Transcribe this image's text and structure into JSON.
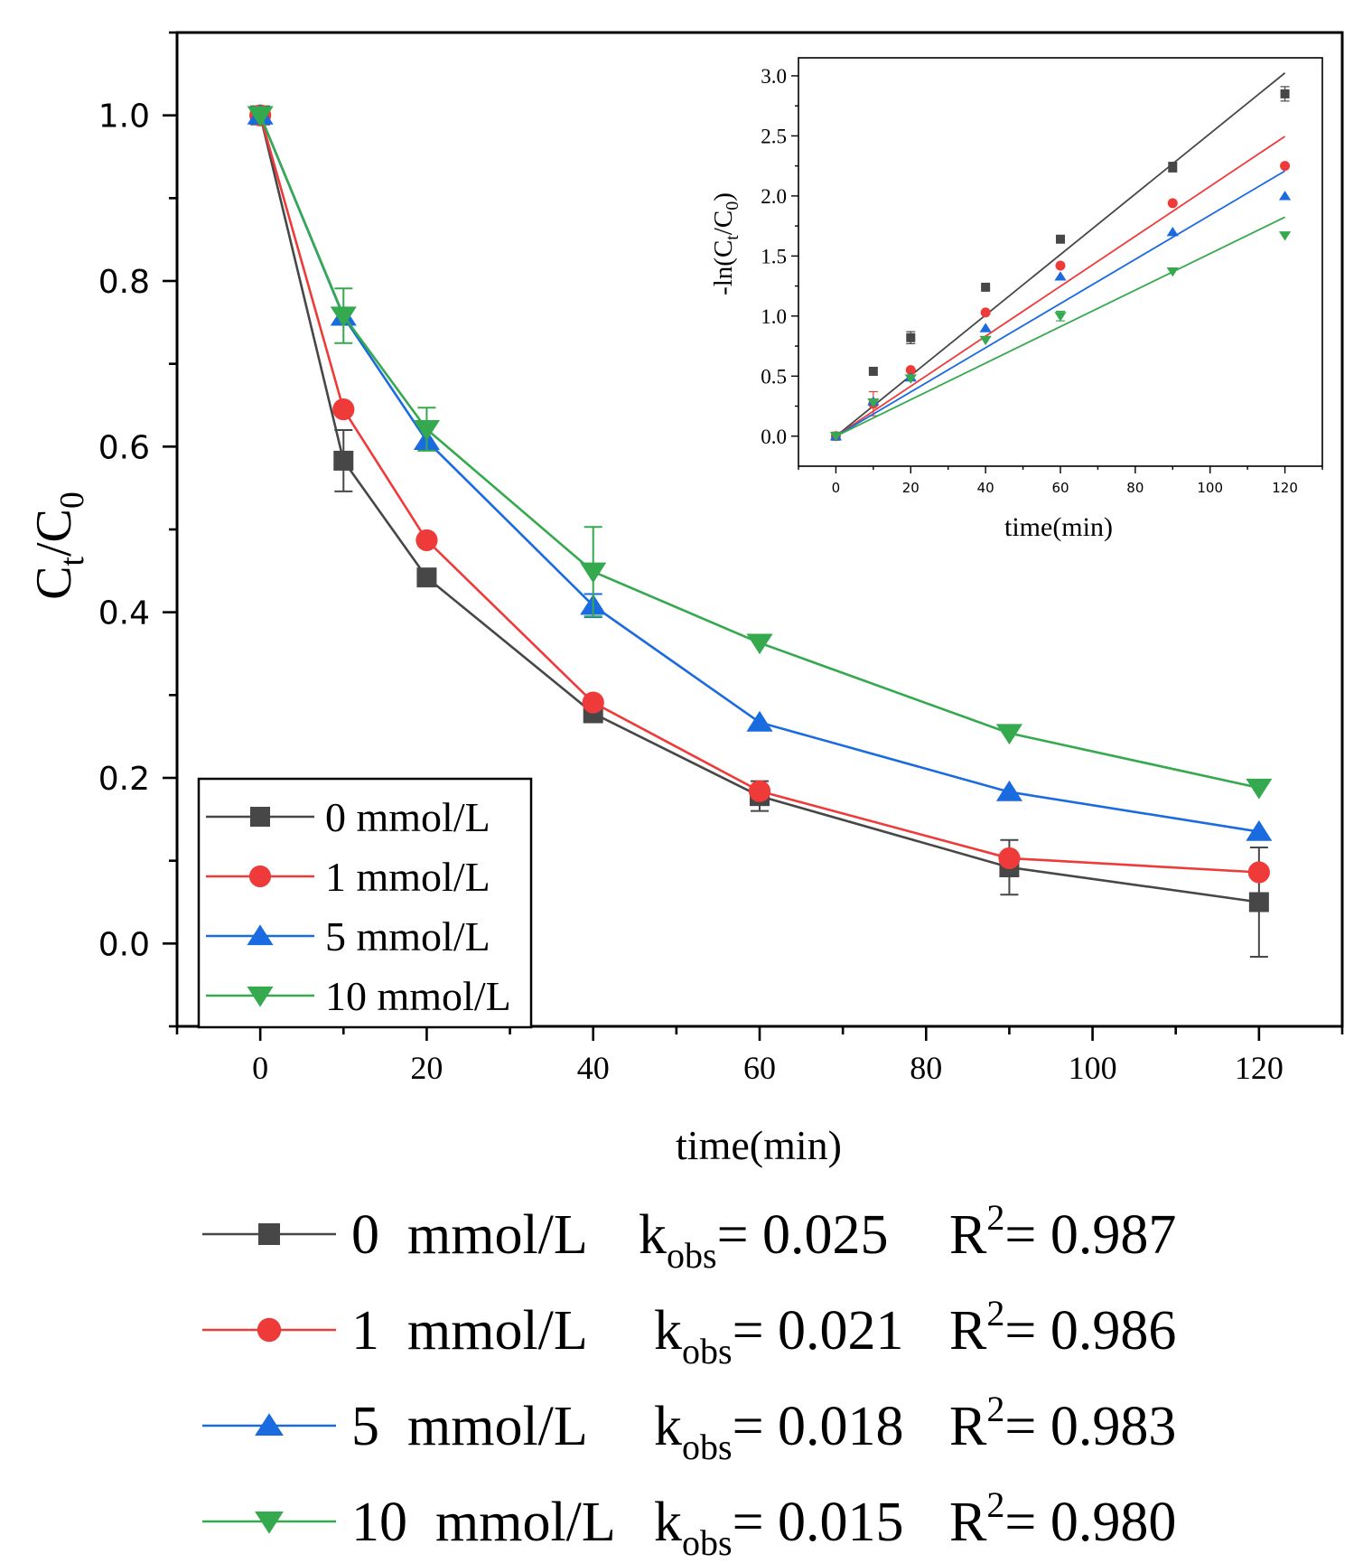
{
  "chart_data": [
    {
      "type": "line",
      "name": "main",
      "xlabel": "time(min)",
      "ylabel": {
        "base": "C",
        "sub1": "t",
        "slash": "/C",
        "sub2": "0"
      },
      "xlim": [
        -10,
        130
      ],
      "ylim": [
        -0.1,
        1.1
      ],
      "xticks": [
        0,
        20,
        40,
        60,
        80,
        100,
        120
      ],
      "yticks": [
        0.0,
        0.2,
        0.4,
        0.6,
        0.8,
        1.0
      ],
      "ytick_labels": [
        "0.0",
        "0.2",
        "0.4",
        "0.6",
        "0.8",
        "1.0"
      ],
      "grid": false,
      "legend_position": "bottom-left",
      "x": [
        0,
        10,
        20,
        40,
        60,
        90,
        120
      ],
      "series": [
        {
          "name": "0 mmol/L",
          "marker": "square",
          "values": [
            1.0,
            0.583,
            0.442,
            0.278,
            0.178,
            0.092,
            0.05
          ],
          "err": [
            0,
            0.037,
            0,
            0,
            0.018,
            0.033,
            0.066
          ]
        },
        {
          "name": "1 mmol/L",
          "marker": "circle",
          "values": [
            1.0,
            0.645,
            0.487,
            0.291,
            0.184,
            0.103,
            0.086
          ],
          "err": [
            0,
            0,
            0,
            0,
            0,
            0,
            0
          ]
        },
        {
          "name": "5 mmol/L",
          "marker": "triangle-up",
          "values": [
            1.0,
            0.757,
            0.607,
            0.408,
            0.267,
            0.183,
            0.135
          ],
          "err": [
            0,
            0,
            0,
            0.014,
            0,
            0,
            0
          ]
        },
        {
          "name": "10 mmol/L",
          "marker": "triangle-down",
          "values": [
            1.0,
            0.758,
            0.621,
            0.449,
            0.363,
            0.254,
            0.188
          ],
          "err": [
            0,
            0.033,
            0.026,
            0.054,
            0,
            0,
            0
          ]
        }
      ]
    },
    {
      "type": "scatter",
      "name": "inset",
      "xlabel": "time(min)",
      "ylabel": {
        "prefix": "-ln(C",
        "sub1": "t",
        "slash": "/C",
        "sub2": "0",
        "suffix": ")"
      },
      "xlim": [
        -10,
        130
      ],
      "ylim": [
        -0.25,
        3.15
      ],
      "xticks": [
        0,
        20,
        40,
        60,
        80,
        100,
        120
      ],
      "yticks": [
        0.0,
        0.5,
        1.0,
        1.5,
        2.0,
        2.5,
        3.0
      ],
      "ytick_labels": [
        "0.0",
        "0.5",
        "1.0",
        "1.5",
        "2.0",
        "2.5",
        "3.0"
      ],
      "grid": false,
      "x": [
        0,
        10,
        20,
        40,
        60,
        90,
        120
      ],
      "series": [
        {
          "name": "0 mmol/L",
          "marker": "square",
          "values": [
            0,
            0.54,
            0.82,
            1.24,
            1.64,
            2.24,
            2.85
          ],
          "err": [
            0,
            0,
            0.05,
            0,
            0,
            0.04,
            0.06
          ],
          "fit_slope": 0.0252
        },
        {
          "name": "1 mmol/L",
          "marker": "circle",
          "values": [
            0,
            0.27,
            0.55,
            1.03,
            1.42,
            1.94,
            2.25
          ],
          "err": [
            0,
            0.1,
            0,
            0,
            0,
            0,
            0
          ],
          "fit_slope": 0.0208
        },
        {
          "name": "5 mmol/L",
          "marker": "triangle-up",
          "values": [
            0,
            0.29,
            0.49,
            0.9,
            1.33,
            1.7,
            2.0
          ],
          "err": [
            0,
            0,
            0,
            0,
            0,
            0,
            0
          ],
          "fit_slope": 0.0184
        },
        {
          "name": "10 mmol/L",
          "marker": "triangle-down",
          "values": [
            0,
            0.28,
            0.48,
            0.8,
            1.0,
            1.37,
            1.67
          ],
          "err": [
            0,
            0,
            0,
            0,
            0.04,
            0,
            0
          ],
          "fit_slope": 0.0152
        }
      ]
    }
  ],
  "colors": {
    "0 mmol/L": "#474747",
    "1 mmol/L": "#ef3a3a",
    "5 mmol/L": "#1a6be0",
    "10 mmol/L": "#35a94e"
  },
  "legend": [
    {
      "label": "0 mmol/L",
      "marker": "square"
    },
    {
      "label": "1 mmol/L",
      "marker": "circle"
    },
    {
      "label": "5 mmol/L",
      "marker": "triangle-up"
    },
    {
      "label": "10 mmol/L",
      "marker": "triangle-down"
    }
  ],
  "kinetics": [
    {
      "conc": "0  mmol/L",
      "k_label": "k",
      "k_sub": "obs",
      "k_value": "= 0.025",
      "r_label": "R",
      "r_sup": "2",
      "r_value": "= 0.987",
      "marker": "square"
    },
    {
      "conc": "1  mmol/L",
      "k_label": "k",
      "k_sub": "obs",
      "k_value": "= 0.021",
      "r_label": "R",
      "r_sup": "2",
      "r_value": "= 0.986",
      "marker": "circle"
    },
    {
      "conc": "5  mmol/L",
      "k_label": "k",
      "k_sub": "obs",
      "k_value": "= 0.018",
      "r_label": "R",
      "r_sup": "2",
      "r_value": "= 0.983",
      "marker": "triangle-up"
    },
    {
      "conc": "10  mmol/L",
      "k_label": "k",
      "k_sub": "obs",
      "k_value": "= 0.015",
      "r_label": "R",
      "r_sup": "2",
      "r_value": "= 0.980",
      "marker": "triangle-down"
    }
  ]
}
